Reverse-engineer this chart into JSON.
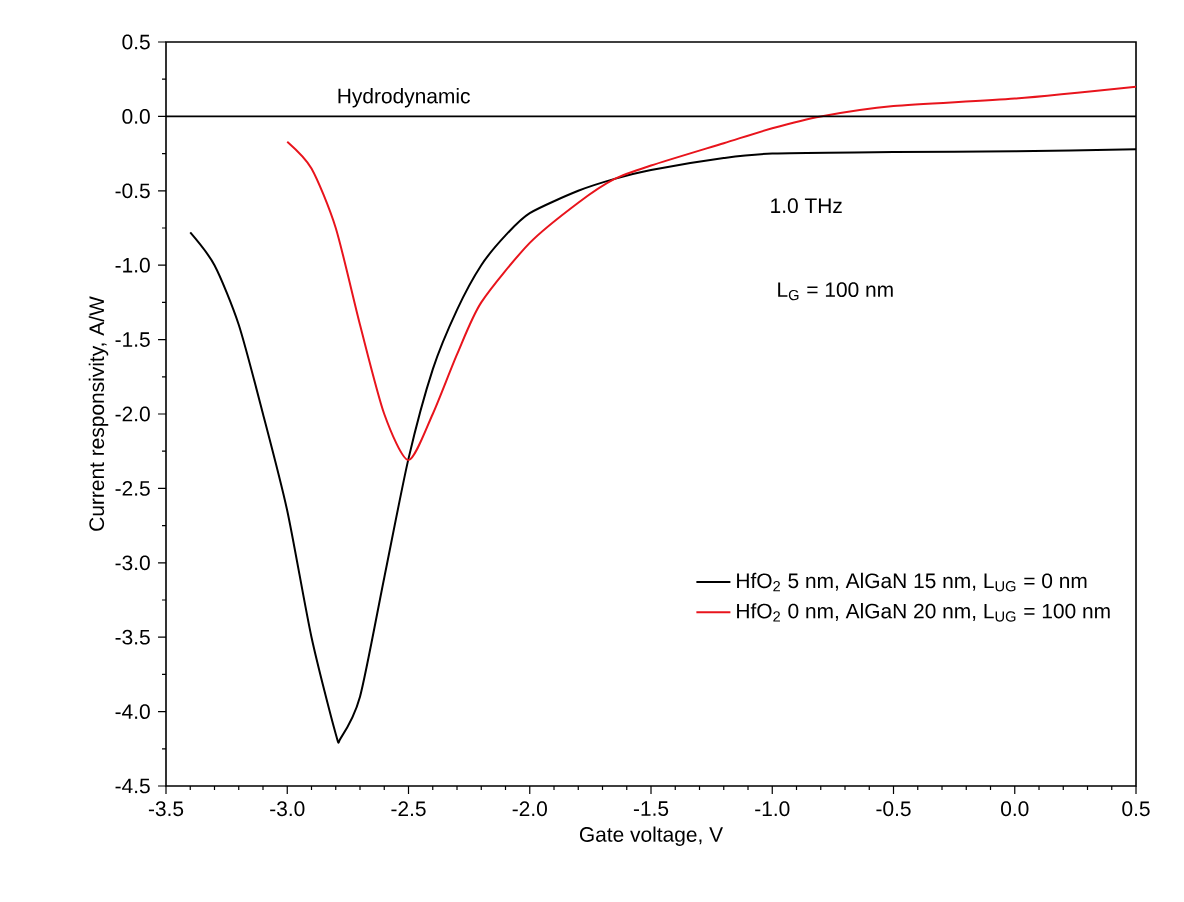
{
  "chart_data": {
    "type": "line",
    "xlabel": "Gate voltage, V",
    "ylabel": "Current responsivity, A/W",
    "annotations": [
      "Hydrodynamic",
      "1.0 THz",
      "L$_{G}$ = 100 nm"
    ],
    "xlim": [
      -3.5,
      0.5
    ],
    "xticks": [
      {
        "value": -3.5,
        "label": "-3.5"
      },
      {
        "value": -3.0,
        "label": "-3.0"
      },
      {
        "value": -2.5,
        "label": "-2.5"
      },
      {
        "value": -2.0,
        "label": "-2.0"
      },
      {
        "value": -1.5,
        "label": "-1.5"
      },
      {
        "value": -1.0,
        "label": "-1.0"
      },
      {
        "value": -0.5,
        "label": "-0.5"
      },
      {
        "value": 0,
        "label": "0.0"
      },
      {
        "value": 0.5,
        "label": "0.5"
      }
    ],
    "ylim": [
      -4.5,
      0.5
    ],
    "yticks": [
      {
        "value": -4.5,
        "label": "-4.5"
      },
      {
        "value": -4.0,
        "label": "-4.0"
      },
      {
        "value": -3.5,
        "label": "-3.5"
      },
      {
        "value": -3.0,
        "label": "-3.0"
      },
      {
        "value": -2.5,
        "label": "-2.5"
      },
      {
        "value": -2.0,
        "label": "-2.0"
      },
      {
        "value": -1.5,
        "label": "-1.5"
      },
      {
        "value": -1.0,
        "label": "-1.0"
      },
      {
        "value": -0.5,
        "label": "-0.5"
      },
      {
        "value": 0,
        "label": "0.0"
      },
      {
        "value": 0.5,
        "label": "0.5"
      }
    ],
    "ref_lines": [
      {
        "axis": "y",
        "value": 0,
        "color": "#000000"
      }
    ],
    "legend": "bottom right",
    "grid": false,
    "marker": "none",
    "line_style": "solid",
    "series": [
      {
        "name": "HfO$_{2}$ 5 nm, AlGaN 15 nm, L$_{UG}$ = 0 nm",
        "color": "#000000",
        "x": [
          -3.4,
          -3.3,
          -3.2,
          -3.1,
          -3.0,
          -2.9,
          -2.8,
          -2.78,
          -2.7,
          -2.6,
          -2.5,
          -2.4,
          -2.3,
          -2.2,
          -2.1,
          -2.0,
          -1.8,
          -1.65,
          -1.5,
          -1.2,
          -1.0,
          -0.5,
          0.0,
          0.5
        ],
        "values": [
          -0.78,
          -1.0,
          -1.4,
          -2.0,
          -2.65,
          -3.5,
          -4.15,
          -4.18,
          -3.9,
          -3.1,
          -2.3,
          -1.7,
          -1.3,
          -1.0,
          -0.8,
          -0.65,
          -0.5,
          -0.42,
          -0.36,
          -0.28,
          -0.25,
          -0.24,
          -0.235,
          -0.22
        ]
      },
      {
        "name": "HfO$_{2}$ 0 nm, AlGaN 20 nm, L$_{UG}$ = 100 nm",
        "color": "#e8141c",
        "x": [
          -3.0,
          -2.9,
          -2.8,
          -2.7,
          -2.6,
          -2.5,
          -2.4,
          -2.3,
          -2.2,
          -2.0,
          -1.8,
          -1.65,
          -1.5,
          -1.2,
          -1.0,
          -0.8,
          -0.5,
          0.0,
          0.5
        ],
        "values": [
          -0.17,
          -0.35,
          -0.75,
          -1.4,
          -2.0,
          -2.31,
          -2.0,
          -1.6,
          -1.25,
          -0.85,
          -0.58,
          -0.42,
          -0.33,
          -0.18,
          -0.08,
          0.0,
          0.07,
          0.12,
          0.2
        ]
      }
    ]
  }
}
